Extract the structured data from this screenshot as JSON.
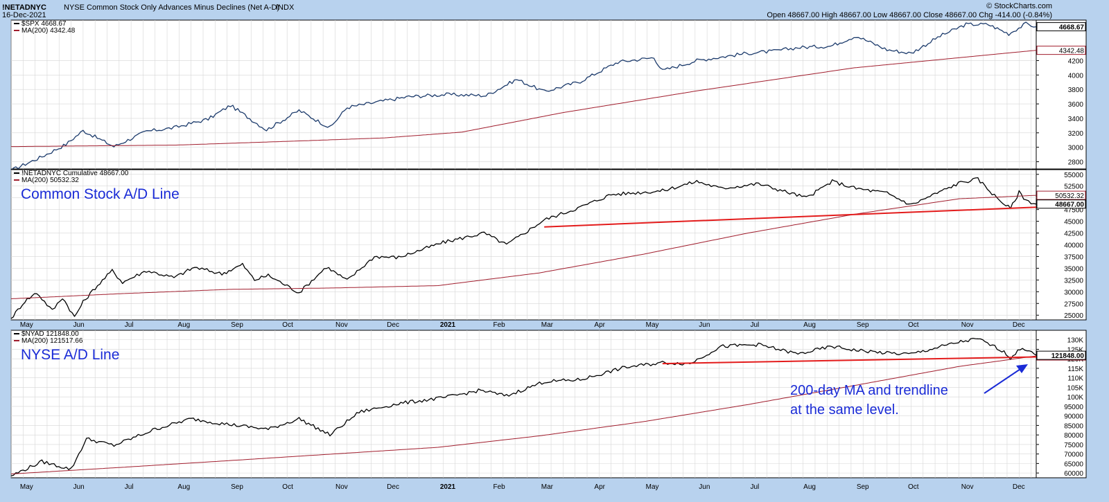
{
  "header": {
    "symbol": "!NETADNYC",
    "description": "NYSE Common Stock Only Advances Minus Declines (Net A-D)",
    "exchange": "INDX",
    "date": "16-Dec-2021",
    "ohlc": "Open 48667.00  High 48667.00  Low 48667.00  Close 48667.00  Chg -414.00 (-0.84%)",
    "brand": "© StockCharts.com"
  },
  "x_axis": {
    "months": [
      "May",
      "Jun",
      "Jul",
      "Aug",
      "Sep",
      "Oct",
      "Nov",
      "Dec",
      "2021",
      "Feb",
      "Mar",
      "Apr",
      "May",
      "Jun",
      "Jul",
      "Aug",
      "Sep",
      "Oct",
      "Nov",
      "Dec"
    ]
  },
  "colors": {
    "price": "#1b3a6b",
    "ma": "#a01c2c",
    "trend": "#e31b1b",
    "annotation": "#1a2bd6",
    "grid": "#d6d6d6"
  },
  "chart_data": [
    {
      "type": "line",
      "legend": [
        "$SPX 4668.67",
        "MA(200) 4342.48"
      ],
      "last_value": "4668.67",
      "ma_value": "4342.48",
      "ylim": [
        2700,
        4760
      ],
      "yticks": [
        2800,
        3000,
        3200,
        3400,
        3600,
        3800,
        4000,
        4200
      ],
      "x_range": [
        "2020-04-27",
        "2021-12-16"
      ],
      "series": [
        {
          "name": "$SPX",
          "x": [
            "2020-04-27",
            "2020-05-15",
            "2020-05-29",
            "2020-06-08",
            "2020-06-26",
            "2020-07-15",
            "2020-07-31",
            "2020-08-20",
            "2020-09-02",
            "2020-09-23",
            "2020-10-12",
            "2020-10-30",
            "2020-11-09",
            "2020-11-30",
            "2020-12-15",
            "2021-01-06",
            "2021-01-29",
            "2021-02-16",
            "2021-03-04",
            "2021-03-25",
            "2021-04-16",
            "2021-05-07",
            "2021-05-12",
            "2021-06-01",
            "2021-06-30",
            "2021-07-16",
            "2021-07-30",
            "2021-08-18",
            "2021-09-02",
            "2021-09-20",
            "2021-10-04",
            "2021-10-21",
            "2021-11-05",
            "2021-11-18",
            "2021-11-30",
            "2021-12-10",
            "2021-12-16"
          ],
          "values": [
            2680,
            2870,
            3040,
            3230,
            3010,
            3220,
            3270,
            3390,
            3580,
            3240,
            3510,
            3270,
            3550,
            3640,
            3700,
            3730,
            3715,
            3940,
            3770,
            3910,
            4180,
            4240,
            4060,
            4200,
            4300,
            4330,
            4380,
            4400,
            4540,
            4350,
            4300,
            4540,
            4700,
            4700,
            4570,
            4710,
            4668
          ]
        },
        {
          "name": "MA(200)",
          "x": [
            "2020-04-27",
            "2020-08-01",
            "2020-10-15",
            "2020-12-01",
            "2021-01-15",
            "2021-03-15",
            "2021-06-01",
            "2021-09-01",
            "2021-12-16"
          ],
          "values": [
            3010,
            3030,
            3090,
            3130,
            3210,
            3480,
            3780,
            4100,
            4342
          ]
        }
      ]
    },
    {
      "type": "line",
      "legend": [
        "!NETADNYC Cumulative 48667.00",
        "MA(200) 50532.32"
      ],
      "label": "Common Stock A/D Line",
      "last_value": "48667.00",
      "ma_value": "50532.32",
      "ylim": [
        24000,
        56000
      ],
      "yticks": [
        25000,
        27500,
        30000,
        32500,
        35000,
        37500,
        40000,
        42500,
        45000,
        47500,
        50000,
        52500,
        55000
      ],
      "x_range": [
        "2020-04-27",
        "2021-12-16"
      ],
      "series": [
        {
          "name": "!NETADNYC Cumulative",
          "x": [
            "2020-04-27",
            "2020-05-05",
            "2020-05-12",
            "2020-05-21",
            "2020-05-27",
            "2020-06-03",
            "2020-06-08",
            "2020-06-15",
            "2020-06-25",
            "2020-07-01",
            "2020-07-15",
            "2020-07-31",
            "2020-08-12",
            "2020-08-28",
            "2020-09-09",
            "2020-09-16",
            "2020-09-24",
            "2020-10-12",
            "2020-10-28",
            "2020-11-09",
            "2020-11-25",
            "2020-12-09",
            "2021-01-04",
            "2021-01-28",
            "2021-02-10",
            "2021-03-04",
            "2021-03-25",
            "2021-04-12",
            "2021-05-12",
            "2021-06-01",
            "2021-06-15",
            "2021-07-07",
            "2021-08-04",
            "2021-08-19",
            "2021-09-02",
            "2021-09-20",
            "2021-10-04",
            "2021-11-02",
            "2021-11-12",
            "2021-11-23",
            "2021-12-01",
            "2021-12-06",
            "2021-12-10",
            "2021-12-16"
          ],
          "values": [
            24300,
            28000,
            29800,
            26000,
            28800,
            24600,
            27800,
            30800,
            34500,
            32000,
            34500,
            33000,
            35200,
            33800,
            35800,
            32500,
            33500,
            29800,
            35300,
            32400,
            37500,
            37300,
            40500,
            42500,
            40000,
            45300,
            48000,
            50700,
            51500,
            53500,
            52000,
            53000,
            50000,
            53500,
            52000,
            51000,
            48500,
            53300,
            54000,
            50000,
            47700,
            51200,
            49500,
            48667
          ]
        },
        {
          "name": "MA(200)",
          "x": [
            "2020-04-27",
            "2020-07-01",
            "2020-09-01",
            "2020-11-01",
            "2021-01-01",
            "2021-03-01",
            "2021-05-01",
            "2021-07-01",
            "2021-09-01",
            "2021-11-01",
            "2021-12-16"
          ],
          "values": [
            28500,
            29600,
            30500,
            30800,
            31300,
            34000,
            38000,
            42500,
            46500,
            49800,
            50532
          ]
        },
        {
          "name": "Trendline",
          "x": [
            "2021-03-04",
            "2021-12-16"
          ],
          "values": [
            43800,
            48000
          ]
        }
      ]
    },
    {
      "type": "line",
      "legend": [
        "$NYAD 121848.00",
        "MA(200) 121517.66"
      ],
      "label": "NYSE A/D Line",
      "last_value": "121848.00",
      "ma_value": "121517.66",
      "ylim": [
        57500,
        135000
      ],
      "yticks": [
        60000,
        65000,
        70000,
        75000,
        80000,
        85000,
        90000,
        95000,
        100000,
        105000,
        110000,
        115000,
        120000,
        125000,
        130000
      ],
      "ytick_labels": [
        "60000",
        "65000",
        "70000",
        "75000",
        "80000",
        "85000",
        "90000",
        "95000",
        "100K",
        "105K",
        "110K",
        "115K",
        "120K",
        "125K",
        "130K"
      ],
      "x_range": [
        "2020-04-27",
        "2021-12-16"
      ],
      "annotation": [
        "200-day MA and trendline",
        "at the same level."
      ],
      "series": [
        {
          "name": "$NYAD",
          "x": [
            "2020-04-27",
            "2020-05-15",
            "2020-06-01",
            "2020-06-10",
            "2020-06-26",
            "2020-07-20",
            "2020-08-10",
            "2020-08-28",
            "2020-09-24",
            "2020-10-12",
            "2020-10-30",
            "2020-11-16",
            "2020-12-09",
            "2021-01-04",
            "2021-01-26",
            "2021-02-10",
            "2021-03-04",
            "2021-03-25",
            "2021-04-20",
            "2021-05-12",
            "2021-05-28",
            "2021-06-15",
            "2021-07-07",
            "2021-07-30",
            "2021-08-19",
            "2021-09-02",
            "2021-09-20",
            "2021-10-04",
            "2021-11-02",
            "2021-11-12",
            "2021-11-26",
            "2021-12-01",
            "2021-12-08",
            "2021-12-16"
          ],
          "values": [
            58500,
            66000,
            62000,
            78000,
            74500,
            83000,
            88500,
            86000,
            83000,
            88500,
            80000,
            92000,
            96500,
            99500,
            103500,
            100500,
            108000,
            109000,
            115500,
            118000,
            117500,
            126500,
            127500,
            122500,
            126500,
            124500,
            123000,
            122500,
            129000,
            130500,
            124500,
            120500,
            126000,
            121848
          ]
        },
        {
          "name": "MA(200)",
          "x": [
            "2020-04-27",
            "2020-07-01",
            "2020-09-01",
            "2020-11-01",
            "2021-01-01",
            "2021-03-01",
            "2021-05-01",
            "2021-07-01",
            "2021-09-01",
            "2021-11-01",
            "2021-12-16"
          ],
          "values": [
            59500,
            63000,
            66500,
            70000,
            73500,
            79500,
            87000,
            96000,
            106000,
            116000,
            121518
          ]
        },
        {
          "name": "Trendline",
          "x": [
            "2021-05-12",
            "2021-12-16"
          ],
          "values": [
            117500,
            121000
          ]
        }
      ]
    }
  ]
}
